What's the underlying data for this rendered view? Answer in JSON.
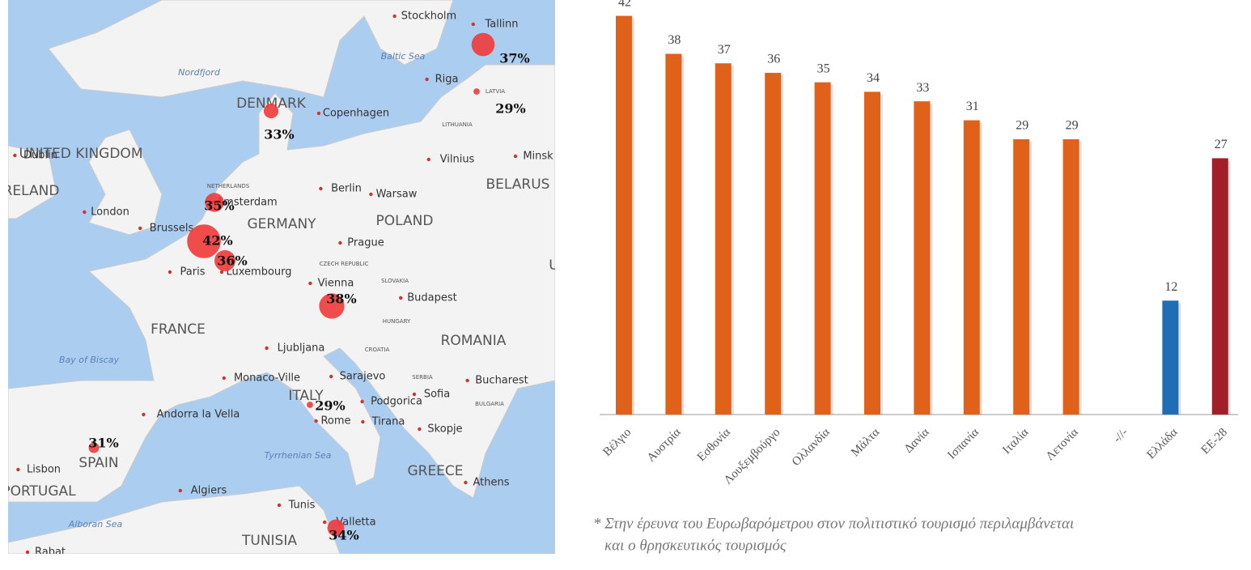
{
  "map": {
    "bubbles": {
      "values": [
        37,
        29,
        33,
        35,
        42,
        36,
        38,
        29,
        31,
        34
      ],
      "value_labels": [
        "37%",
        "29%",
        "33%",
        "35%",
        "42%",
        "36%",
        "38%",
        "29%",
        "31%",
        "34%"
      ],
      "color": "#f03a3a"
    },
    "countries": [
      "UNITED KINGDOM",
      "IRELAND",
      "DENMARK",
      "GERMANY",
      "POLAND",
      "BELARUS",
      "FRANCE",
      "ROMANIA",
      "SPAIN",
      "PORTUGAL",
      "ITALY",
      "GREECE",
      "TUNISIA",
      "UK"
    ],
    "cities": [
      "Stockholm",
      "Tallinn",
      "Riga",
      "Copenhagen",
      "Vilnius",
      "Minsk",
      "Dublin",
      "London",
      "Amsterdam",
      "Berlin",
      "Warsaw",
      "Brussels",
      "Prague",
      "Paris",
      "Luxembourg",
      "Vienna",
      "Budapest",
      "Ljubljana",
      "Sarajevo",
      "Bucharest",
      "Monaco-Ville",
      "Podgorica",
      "Sofia",
      "Andorra la Vella",
      "Rome",
      "Tirana",
      "Skopje",
      "Lisbon",
      "Athens",
      "Algiers",
      "Tunis",
      "Valletta",
      "Rabat"
    ],
    "small": [
      "LATVIA",
      "LITHUANIA",
      "NETHERLANDS",
      "CZECH REPUBLIC",
      "SLOVAKIA",
      "HUNGARY",
      "CROATIA",
      "SERBIA",
      "BULGARIA"
    ],
    "seas": [
      "Baltic Sea",
      "Nordfjord",
      "Bay of Biscay",
      "Tyrrhenian Sea",
      "Alboran Sea"
    ]
  },
  "chart_data": {
    "type": "bar",
    "categories": [
      "Βέλγιο",
      "Αυστρία",
      "Εσθονία",
      "Λουξεμβούργο",
      "Ολλανδία",
      "Μάλτα",
      "Δανία",
      "Ισπανία",
      "Ιταλία",
      "Λετονία",
      "-//-",
      "Ελλάδα",
      "ΕΕ-28"
    ],
    "values": [
      42,
      38,
      37,
      36,
      35,
      34,
      33,
      31,
      29,
      29,
      null,
      12,
      27
    ],
    "colors": [
      "#e0621a",
      "#e0621a",
      "#e0621a",
      "#e0621a",
      "#e0621a",
      "#e0621a",
      "#e0621a",
      "#e0621a",
      "#e0621a",
      "#e0621a",
      "#e0621a",
      "#1f6db5",
      "#a01f28"
    ],
    "ylim": [
      0,
      43.5
    ],
    "footnote": [
      "* Στην έρευνα του Ευρωβαρόμετρου στον πολιτιστικό τουρισμό περιλαμβάνεται",
      "και ο θρησκευτικός τουρισμός"
    ]
  }
}
